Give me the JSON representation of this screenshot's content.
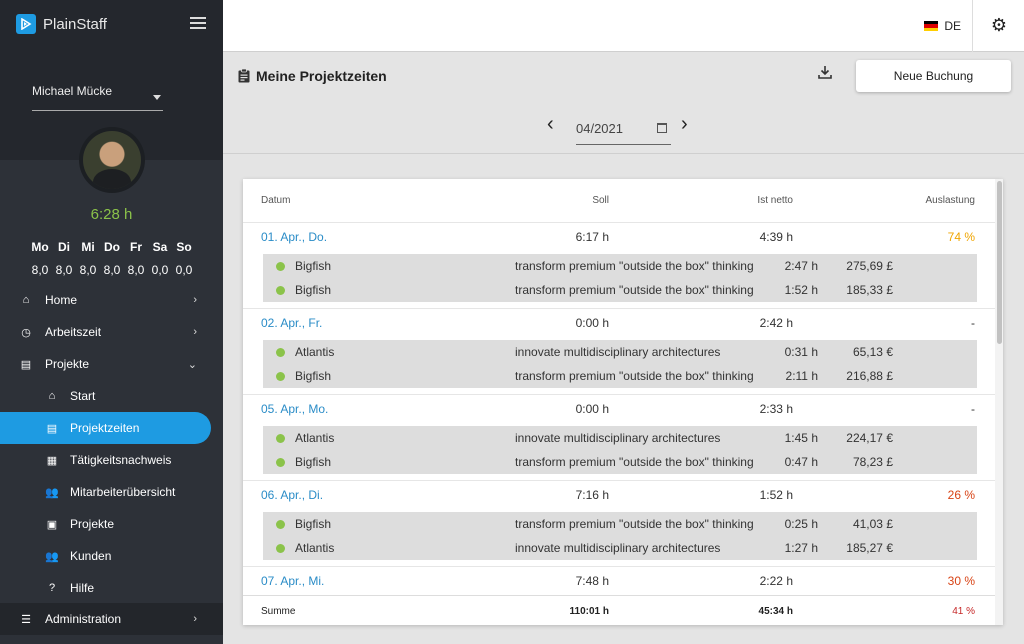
{
  "app": {
    "name": "PlainStaff"
  },
  "sidebar": {
    "user": "Michael Mücke",
    "time": "6:28 h",
    "week_days": [
      "Mo",
      "Di",
      "Mi",
      "Do",
      "Fr",
      "Sa",
      "So"
    ],
    "week_values": [
      "8,0",
      "8,0",
      "8,0",
      "8,0",
      "8,0",
      "0,0",
      "0,0"
    ],
    "nav": [
      {
        "label": "Home",
        "icon": "home-icon"
      },
      {
        "label": "Arbeitszeit",
        "icon": "clock-icon"
      },
      {
        "label": "Projekte",
        "icon": "clipboard-icon"
      }
    ],
    "sub": [
      {
        "label": "Start",
        "icon": "home-icon"
      },
      {
        "label": "Projektzeiten",
        "icon": "clipboard-icon"
      },
      {
        "label": "Tätigkeitsnachweis",
        "icon": "table-icon"
      },
      {
        "label": "Mitarbeiterübersicht",
        "icon": "people-icon"
      },
      {
        "label": "Projekte",
        "icon": "briefcase-icon"
      },
      {
        "label": "Kunden",
        "icon": "people-icon"
      },
      {
        "label": "Hilfe",
        "icon": "help-icon"
      }
    ],
    "admin": "Administration"
  },
  "topbar": {
    "lang": "DE"
  },
  "page": {
    "title": "Meine Projektzeiten",
    "new_button": "Neue Buchung",
    "month": "04/2021"
  },
  "table": {
    "headers": {
      "datum": "Datum",
      "soll": "Soll",
      "ist": "Ist netto",
      "aus": "Auslastung"
    },
    "days": [
      {
        "date": "01. Apr., Do.",
        "soll": "6:17 h",
        "ist": "4:39 h",
        "aus": "74 %",
        "aus_color": "#f0a500",
        "entries": [
          {
            "proj": "Bigfish",
            "task": "transform premium \"outside the box\" thinking",
            "dur": "2:47 h",
            "amt": "275,69 £"
          },
          {
            "proj": "Bigfish",
            "task": "transform premium \"outside the box\" thinking",
            "dur": "1:52 h",
            "amt": "185,33 £"
          }
        ]
      },
      {
        "date": "02. Apr., Fr.",
        "soll": "0:00 h",
        "ist": "2:42 h",
        "aus": "-",
        "aus_color": "#333333",
        "entries": [
          {
            "proj": "Atlantis",
            "task": "innovate multidisciplinary architectures",
            "dur": "0:31 h",
            "amt": "65,13 €"
          },
          {
            "proj": "Bigfish",
            "task": "transform premium \"outside the box\" thinking",
            "dur": "2:11 h",
            "amt": "216,88 £"
          }
        ]
      },
      {
        "date": "05. Apr., Mo.",
        "soll": "0:00 h",
        "ist": "2:33 h",
        "aus": "-",
        "aus_color": "#333333",
        "entries": [
          {
            "proj": "Atlantis",
            "task": "innovate multidisciplinary architectures",
            "dur": "1:45 h",
            "amt": "224,17 €"
          },
          {
            "proj": "Bigfish",
            "task": "transform premium \"outside the box\" thinking",
            "dur": "0:47 h",
            "amt": "78,23 £"
          }
        ]
      },
      {
        "date": "06. Apr., Di.",
        "soll": "7:16 h",
        "ist": "1:52 h",
        "aus": "26 %",
        "aus_color": "#d84315",
        "entries": [
          {
            "proj": "Bigfish",
            "task": "transform premium \"outside the box\" thinking",
            "dur": "0:25 h",
            "amt": "41,03 £"
          },
          {
            "proj": "Atlantis",
            "task": "innovate multidisciplinary architectures",
            "dur": "1:27 h",
            "amt": "185,27 €"
          }
        ]
      },
      {
        "date": "07. Apr., Mi.",
        "soll": "7:48 h",
        "ist": "2:22 h",
        "aus": "30 %",
        "aus_color": "#d84315",
        "entries": []
      }
    ],
    "sum": {
      "label": "Summe",
      "soll": "110:01 h",
      "ist": "45:34 h",
      "aus": "41 %",
      "aus_color": "#c62828"
    }
  }
}
